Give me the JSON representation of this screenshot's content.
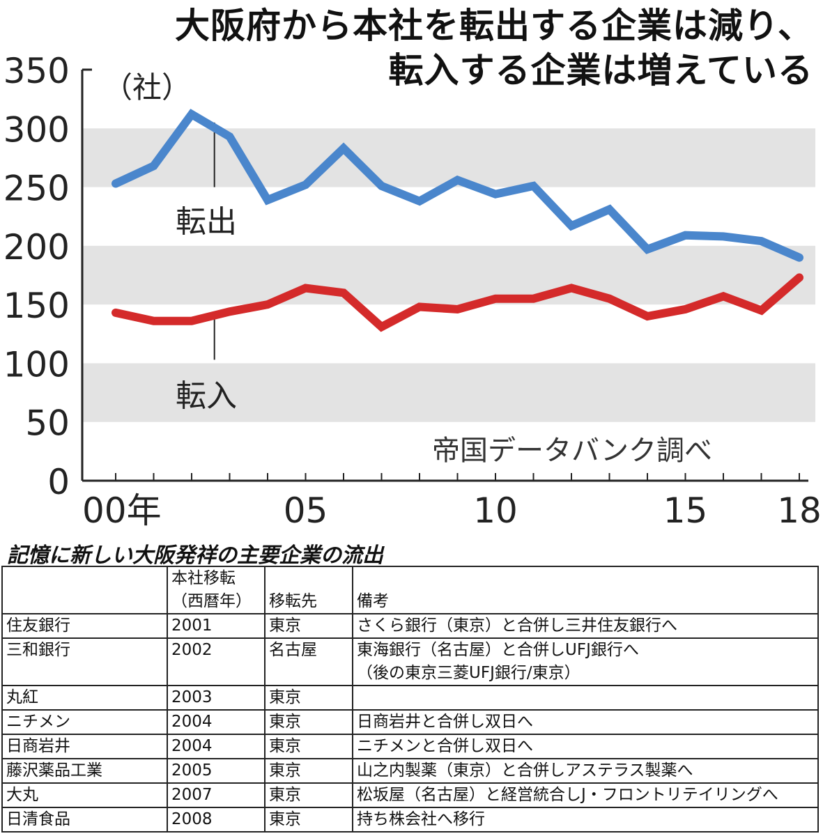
{
  "chart_data": {
    "type": "line",
    "title": "大阪府から本社を転出する企業は減り、転入する企業は増えている",
    "title_lines": [
      "大阪府から本社を転出する企業は減り、",
      "転入する企業は増えている"
    ],
    "ylabel": "（社）",
    "ylim": [
      0,
      350
    ],
    "yticks": [
      0,
      50,
      100,
      150,
      200,
      250,
      300,
      350
    ],
    "x": [
      2000,
      2001,
      2002,
      2003,
      2004,
      2005,
      2006,
      2007,
      2008,
      2009,
      2010,
      2011,
      2012,
      2013,
      2014,
      2015,
      2016,
      2017,
      2018
    ],
    "xticks": [
      {
        "value": 2000,
        "label": "00年"
      },
      {
        "value": 2005,
        "label": "05"
      },
      {
        "value": 2010,
        "label": "10"
      },
      {
        "value": 2015,
        "label": "15"
      },
      {
        "value": 2018,
        "label": "18"
      }
    ],
    "grid_bands": [
      [
        50,
        100
      ],
      [
        150,
        200
      ],
      [
        250,
        300
      ]
    ],
    "series": [
      {
        "name": "転出",
        "color": "#4a86cc",
        "values": [
          253,
          268,
          312,
          293,
          239,
          252,
          283,
          251,
          238,
          256,
          244,
          251,
          217,
          231,
          197,
          209,
          208,
          204,
          190
        ]
      },
      {
        "name": "転入",
        "color": "#d42a2a",
        "values": [
          143,
          136,
          136,
          144,
          150,
          164,
          160,
          131,
          148,
          146,
          155,
          155,
          164,
          155,
          140,
          146,
          157,
          145,
          173
        ]
      }
    ],
    "source": "帝国データバンク調べ"
  },
  "table": {
    "title": "記憶に新しい大阪発祥の主要企業の流出",
    "headers": [
      "",
      "本社移転\n（西暦年）",
      "移転先",
      "備考"
    ],
    "rows": [
      [
        "住友銀行",
        "2001",
        "東京",
        "さくら銀行（東京）と合併し三井住友銀行へ"
      ],
      [
        "三和銀行",
        "2002",
        "名古屋",
        "東海銀行（名古屋）と合併しUFJ銀行へ\n（後の東京三菱UFJ銀行/東京）"
      ],
      [
        "丸紅",
        "2003",
        "東京",
        ""
      ],
      [
        "ニチメン",
        "2004",
        "東京",
        "日商岩井と合併し双日へ"
      ],
      [
        "日商岩井",
        "2004",
        "東京",
        "ニチメンと合併し双日へ"
      ],
      [
        "藤沢薬品工業",
        "2005",
        "東京",
        "山之内製薬（東京）と合併しアステラス製薬へ"
      ],
      [
        "大丸",
        "2007",
        "東京",
        "松坂屋（名古屋）と経営統合しJ・フロントリテイリングへ"
      ],
      [
        "日清食品",
        "2008",
        "東京",
        "持ち株会社へ移行"
      ]
    ]
  }
}
